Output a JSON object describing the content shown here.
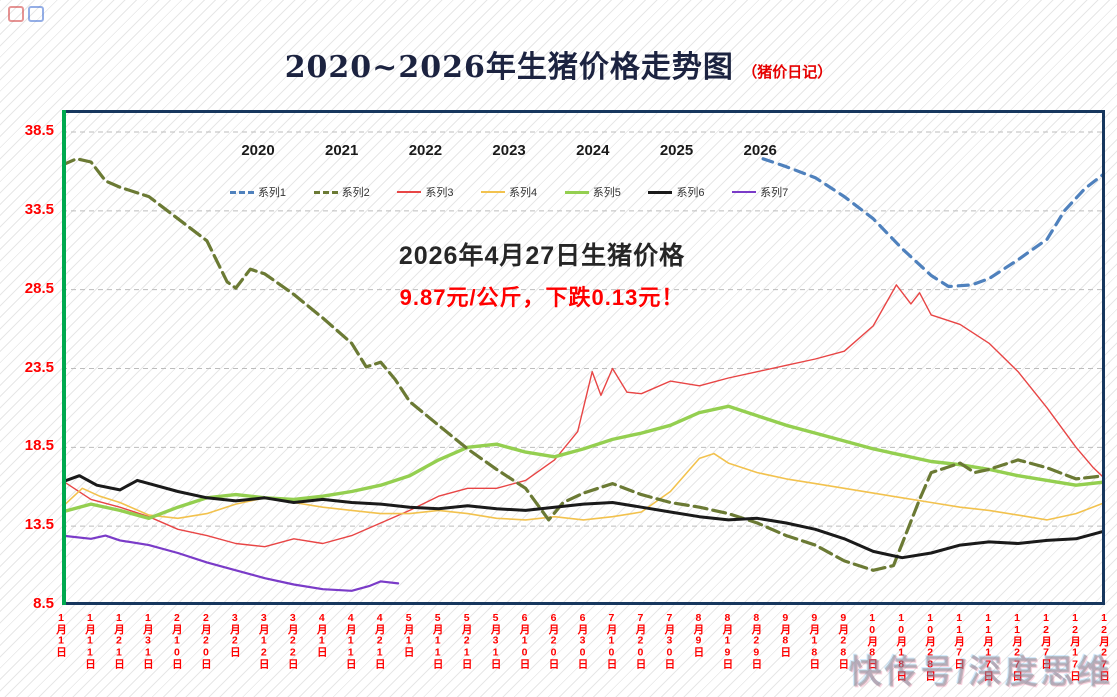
{
  "title": {
    "main": "2020~2026年生猪价格走势图",
    "suffix": "（猪价日记）"
  },
  "annotation": {
    "line1": "2026年4月27日生猪价格",
    "line2": "9.87元/公斤，下跌0.13元！"
  },
  "watermark": "快传号/深度思维",
  "colors": {
    "border_navy": "#17375e",
    "axis_green": "#00a94f",
    "axis_label_red": "#ff0000",
    "grid_gray": "#bdbdbd",
    "title_navy": "#1c2340",
    "title_red": "#e60000"
  },
  "chart_data": {
    "type": "line",
    "title": "2020~2026年生猪价格走势图（猪价日记）",
    "ylim": [
      8.5,
      38.5
    ],
    "y_ticks": [
      38.5,
      33.5,
      28.5,
      23.5,
      18.5,
      13.5,
      8.5
    ],
    "grid": true,
    "legend_position": "top",
    "legend_years": [
      "2020",
      "2021",
      "2022",
      "2023",
      "2024",
      "2025",
      "2026"
    ],
    "categories": [
      "1月1日",
      "1月11日",
      "1月21日",
      "1月31日",
      "2月10日",
      "2月20日",
      "3月2日",
      "3月12日",
      "3月22日",
      "4月1日",
      "4月11日",
      "4月21日",
      "5月1日",
      "5月11日",
      "5月21日",
      "5月31日",
      "6月10日",
      "6月20日",
      "6月30日",
      "7月10日",
      "7月20日",
      "7月30日",
      "8月9日",
      "8月19日",
      "8月29日",
      "9月8日",
      "9月18日",
      "9月28日",
      "10月8日",
      "10月18日",
      "10月28日",
      "11月7日",
      "11月17日",
      "11月27日",
      "12月7日",
      "12月17日",
      "12月27日"
    ],
    "series": [
      {
        "name": "系列3",
        "year": "2022",
        "color": "#e84545",
        "width": 1.4,
        "dash": "",
        "points": [
          [
            0,
            16.4
          ],
          [
            1,
            15.2
          ],
          [
            2,
            14.7
          ],
          [
            3,
            14.1
          ],
          [
            4,
            13.3
          ],
          [
            5,
            12.9
          ],
          [
            6,
            12.4
          ],
          [
            7,
            12.2
          ],
          [
            8,
            12.7
          ],
          [
            9,
            12.4
          ],
          [
            10,
            12.9
          ],
          [
            11,
            13.7
          ],
          [
            12,
            14.5
          ],
          [
            13,
            15.4
          ],
          [
            14,
            15.9
          ],
          [
            15,
            15.9
          ],
          [
            16,
            16.4
          ],
          [
            17,
            17.7
          ],
          [
            17.8,
            19.5
          ],
          [
            18.3,
            23.3
          ],
          [
            18.6,
            21.8
          ],
          [
            19,
            23.5
          ],
          [
            19.5,
            22.0
          ],
          [
            20,
            21.9
          ],
          [
            21,
            22.7
          ],
          [
            22,
            22.4
          ],
          [
            23,
            22.9
          ],
          [
            24,
            23.3
          ],
          [
            25,
            23.7
          ],
          [
            26,
            24.1
          ],
          [
            27,
            24.6
          ],
          [
            28,
            26.2
          ],
          [
            28.8,
            28.8
          ],
          [
            29.3,
            27.6
          ],
          [
            29.6,
            28.3
          ],
          [
            30,
            26.9
          ],
          [
            31,
            26.3
          ],
          [
            32,
            25.1
          ],
          [
            33,
            23.3
          ],
          [
            34,
            21.0
          ],
          [
            35,
            18.5
          ],
          [
            35.6,
            17.2
          ],
          [
            36,
            16.5
          ]
        ]
      },
      {
        "name": "系列4",
        "year": "2023",
        "color": "#f2c24e",
        "width": 1.6,
        "dash": "",
        "points": [
          [
            0,
            14.7
          ],
          [
            0.7,
            15.9
          ],
          [
            1.3,
            15.4
          ],
          [
            2,
            15.0
          ],
          [
            3,
            14.2
          ],
          [
            4,
            14.0
          ],
          [
            5,
            14.3
          ],
          [
            6,
            14.9
          ],
          [
            7,
            15.3
          ],
          [
            8,
            15.0
          ],
          [
            9,
            14.7
          ],
          [
            10,
            14.5
          ],
          [
            11,
            14.3
          ],
          [
            12,
            14.3
          ],
          [
            13,
            14.5
          ],
          [
            14,
            14.3
          ],
          [
            15,
            14.0
          ],
          [
            16,
            13.9
          ],
          [
            17,
            14.1
          ],
          [
            18,
            13.9
          ],
          [
            19,
            14.1
          ],
          [
            20,
            14.4
          ],
          [
            21,
            15.7
          ],
          [
            22,
            17.8
          ],
          [
            22.5,
            18.1
          ],
          [
            23,
            17.5
          ],
          [
            24,
            16.9
          ],
          [
            25,
            16.5
          ],
          [
            26,
            16.2
          ],
          [
            27,
            15.9
          ],
          [
            28,
            15.6
          ],
          [
            29,
            15.3
          ],
          [
            30,
            15.0
          ],
          [
            31,
            14.7
          ],
          [
            32,
            14.5
          ],
          [
            33,
            14.2
          ],
          [
            34,
            13.9
          ],
          [
            35,
            14.3
          ],
          [
            36,
            15.0
          ]
        ]
      },
      {
        "name": "系列5",
        "year": "2024",
        "color": "#94cf50",
        "width": 3.4,
        "dash": "",
        "points": [
          [
            0,
            14.4
          ],
          [
            1,
            14.9
          ],
          [
            2,
            14.5
          ],
          [
            3,
            14.0
          ],
          [
            4,
            14.7
          ],
          [
            5,
            15.3
          ],
          [
            6,
            15.5
          ],
          [
            7,
            15.3
          ],
          [
            8,
            15.2
          ],
          [
            9,
            15.4
          ],
          [
            10,
            15.7
          ],
          [
            11,
            16.1
          ],
          [
            12,
            16.7
          ],
          [
            13,
            17.7
          ],
          [
            14,
            18.5
          ],
          [
            15,
            18.7
          ],
          [
            16,
            18.2
          ],
          [
            17,
            17.9
          ],
          [
            18,
            18.4
          ],
          [
            19,
            19.0
          ],
          [
            20,
            19.4
          ],
          [
            21,
            19.9
          ],
          [
            22,
            20.7
          ],
          [
            23,
            21.1
          ],
          [
            24,
            20.5
          ],
          [
            25,
            19.9
          ],
          [
            26,
            19.4
          ],
          [
            27,
            18.9
          ],
          [
            28,
            18.4
          ],
          [
            29,
            18.0
          ],
          [
            30,
            17.6
          ],
          [
            31,
            17.4
          ],
          [
            32,
            17.1
          ],
          [
            33,
            16.7
          ],
          [
            34,
            16.4
          ],
          [
            35,
            16.1
          ],
          [
            36,
            16.3
          ]
        ]
      },
      {
        "name": "系列2",
        "year": "2021",
        "color": "#6b7a34",
        "width": 3.2,
        "dash": "13 6",
        "points": [
          [
            0,
            36.4
          ],
          [
            0.5,
            36.8
          ],
          [
            1,
            36.6
          ],
          [
            1.5,
            35.4
          ],
          [
            2,
            35.0
          ],
          [
            3,
            34.4
          ],
          [
            4,
            33.0
          ],
          [
            5,
            31.6
          ],
          [
            5.7,
            29.0
          ],
          [
            6,
            28.6
          ],
          [
            6.5,
            29.8
          ],
          [
            7,
            29.5
          ],
          [
            8,
            28.2
          ],
          [
            9,
            26.7
          ],
          [
            10,
            25.1
          ],
          [
            10.5,
            23.6
          ],
          [
            11,
            23.9
          ],
          [
            11.5,
            22.8
          ],
          [
            12,
            21.4
          ],
          [
            13,
            19.9
          ],
          [
            14,
            18.4
          ],
          [
            15,
            17.1
          ],
          [
            16,
            15.9
          ],
          [
            16.8,
            13.9
          ],
          [
            17.3,
            15.0
          ],
          [
            18,
            15.6
          ],
          [
            19,
            16.2
          ],
          [
            20,
            15.5
          ],
          [
            21,
            15.0
          ],
          [
            22,
            14.7
          ],
          [
            23,
            14.3
          ],
          [
            24,
            13.7
          ],
          [
            25,
            12.9
          ],
          [
            26,
            12.3
          ],
          [
            27,
            11.3
          ],
          [
            28,
            10.7
          ],
          [
            28.7,
            11.0
          ],
          [
            29,
            12.4
          ],
          [
            29.6,
            15.2
          ],
          [
            30,
            16.9
          ],
          [
            31,
            17.5
          ],
          [
            31.5,
            16.9
          ],
          [
            32,
            17.1
          ],
          [
            33,
            17.7
          ],
          [
            34,
            17.2
          ],
          [
            35,
            16.5
          ],
          [
            36,
            16.7
          ]
        ]
      },
      {
        "name": "系列6",
        "year": "2025",
        "color": "#1a1a1a",
        "width": 3.0,
        "dash": "",
        "points": [
          [
            0,
            16.3
          ],
          [
            0.6,
            16.7
          ],
          [
            1.2,
            16.1
          ],
          [
            2,
            15.8
          ],
          [
            2.6,
            16.4
          ],
          [
            3,
            16.2
          ],
          [
            4,
            15.7
          ],
          [
            5,
            15.3
          ],
          [
            6,
            15.1
          ],
          [
            7,
            15.3
          ],
          [
            8,
            15.0
          ],
          [
            9,
            15.2
          ],
          [
            10,
            15.0
          ],
          [
            11,
            14.9
          ],
          [
            12,
            14.7
          ],
          [
            13,
            14.6
          ],
          [
            14,
            14.8
          ],
          [
            15,
            14.6
          ],
          [
            16,
            14.5
          ],
          [
            17,
            14.7
          ],
          [
            18,
            14.9
          ],
          [
            19,
            15.0
          ],
          [
            20,
            14.7
          ],
          [
            21,
            14.4
          ],
          [
            22,
            14.1
          ],
          [
            23,
            13.9
          ],
          [
            24,
            14.0
          ],
          [
            25,
            13.7
          ],
          [
            26,
            13.3
          ],
          [
            27,
            12.7
          ],
          [
            28,
            11.9
          ],
          [
            29,
            11.5
          ],
          [
            30,
            11.8
          ],
          [
            31,
            12.3
          ],
          [
            32,
            12.5
          ],
          [
            33,
            12.4
          ],
          [
            34,
            12.6
          ],
          [
            35,
            12.7
          ],
          [
            36,
            13.2
          ]
        ]
      },
      {
        "name": "系列1",
        "year": "2020",
        "color": "#4f81bd",
        "width": 3.2,
        "dash": "10 7",
        "points": [
          [
            24.2,
            36.8
          ],
          [
            25,
            36.3
          ],
          [
            26,
            35.6
          ],
          [
            27,
            34.4
          ],
          [
            28,
            33.0
          ],
          [
            29,
            31.1
          ],
          [
            30,
            29.4
          ],
          [
            30.6,
            28.7
          ],
          [
            31.4,
            28.8
          ],
          [
            32,
            29.2
          ],
          [
            33,
            30.4
          ],
          [
            34,
            31.7
          ],
          [
            34.6,
            33.5
          ],
          [
            35.3,
            34.9
          ],
          [
            36,
            35.9
          ]
        ]
      },
      {
        "name": "系列7",
        "year": "2026",
        "color": "#7a3bc8",
        "width": 2.2,
        "dash": "",
        "points": [
          [
            0,
            12.9
          ],
          [
            1,
            12.7
          ],
          [
            1.5,
            12.9
          ],
          [
            2,
            12.6
          ],
          [
            3,
            12.3
          ],
          [
            4,
            11.8
          ],
          [
            5,
            11.2
          ],
          [
            6,
            10.7
          ],
          [
            7,
            10.2
          ],
          [
            8,
            9.8
          ],
          [
            9,
            9.5
          ],
          [
            10,
            9.4
          ],
          [
            10.6,
            9.7
          ],
          [
            11,
            10.0
          ],
          [
            11.6,
            9.87
          ]
        ]
      }
    ]
  }
}
